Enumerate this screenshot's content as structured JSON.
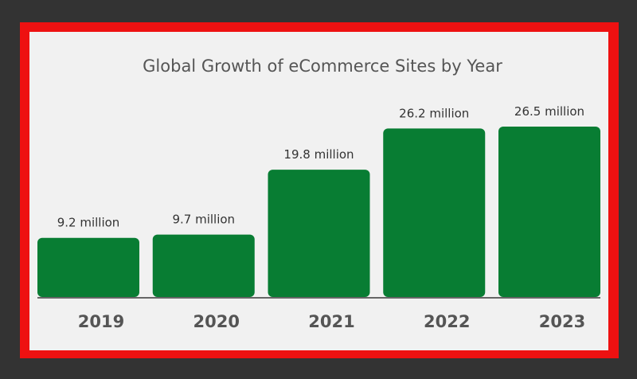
{
  "colors": {
    "background": "#333333",
    "frame": "#ee1111",
    "panel": "#f1f1f1",
    "bar": "#087d33",
    "baseline": "#666666"
  },
  "chart_data": {
    "type": "bar",
    "title": "Global Growth of eCommerce Sites by Year",
    "xlabel": "",
    "ylabel": "",
    "unit": "million",
    "categories": [
      "2019",
      "2020",
      "2021",
      "2022",
      "2023"
    ],
    "values": [
      9.2,
      9.7,
      19.8,
      26.2,
      26.5
    ],
    "data_labels": [
      "9.2 million",
      "9.7 million",
      "19.8 million",
      "26.2 million",
      "26.5 million"
    ],
    "ylim": [
      0,
      26.5
    ],
    "grid": false,
    "legend": "none"
  }
}
